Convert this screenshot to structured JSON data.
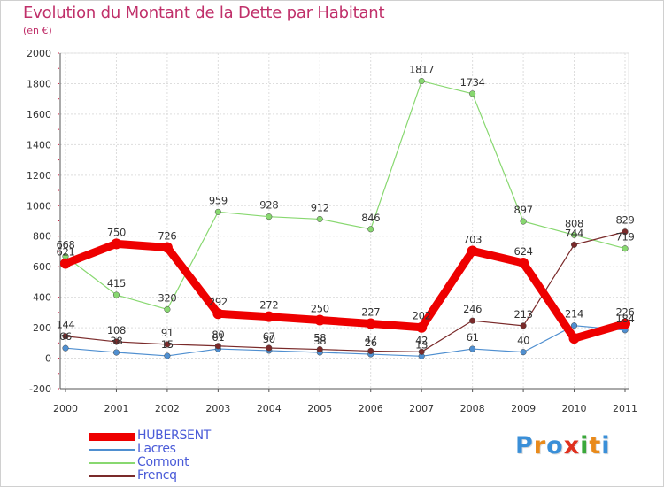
{
  "header": {
    "title": "Evolution du Montant de la Dette par Habitant",
    "subtitle": "(en €)"
  },
  "brand": {
    "letters": [
      "P",
      "r",
      "o",
      "x",
      "i",
      "t",
      "i"
    ],
    "colors": [
      "#3a8fd8",
      "#e98a1a",
      "#3a8fd8",
      "#e0301e",
      "#3aa83a",
      "#e98a1a",
      "#3a8fd8"
    ]
  },
  "chart_data": {
    "type": "line",
    "title": "Evolution du Montant de la Dette par Habitant",
    "ylabel": "(en €)",
    "xlabel": "",
    "categories": [
      "2000",
      "2001",
      "2002",
      "2003",
      "2004",
      "2005",
      "2006",
      "2007",
      "2008",
      "2009",
      "2010",
      "2011"
    ],
    "ylim": [
      -200,
      2000
    ],
    "yticks": [
      -200,
      0,
      200,
      400,
      600,
      800,
      1000,
      1200,
      1400,
      1600,
      1800,
      2000
    ],
    "grid": "horizontal",
    "legend_position": "bottom-left",
    "series": [
      {
        "name": "HUBERSENT",
        "color": "#ee0000",
        "values": [
          621,
          750,
          726,
          292,
          272,
          250,
          227,
          202,
          703,
          624,
          130,
          226
        ],
        "labels": [
          "621",
          "750",
          "726",
          "292",
          "272",
          "250",
          "227",
          "202",
          "703",
          "624",
          "",
          "226"
        ]
      },
      {
        "name": "Lacres",
        "color": "#4f8fd0",
        "values": [
          66,
          38,
          15,
          61,
          50,
          38,
          26,
          13,
          61,
          40,
          214,
          184
        ],
        "labels": [
          "66",
          "38",
          "15",
          "61",
          "50",
          "38",
          "26",
          "13",
          "61",
          "40",
          "214",
          "184"
        ]
      },
      {
        "name": "Cormont",
        "color": "#88d870",
        "values": [
          668,
          415,
          320,
          959,
          928,
          912,
          846,
          1817,
          1734,
          897,
          808,
          719
        ],
        "labels": [
          "668",
          "415",
          "320",
          "959",
          "928",
          "912",
          "846",
          "1817",
          "1734",
          "897",
          "808",
          "719"
        ]
      },
      {
        "name": "Frencq",
        "color": "#7a2a2a",
        "values": [
          144,
          108,
          91,
          80,
          67,
          58,
          47,
          42,
          246,
          213,
          744,
          829
        ],
        "labels": [
          "144",
          "108",
          "91",
          "80",
          "67",
          "58",
          "47",
          "42",
          "246",
          "213",
          "744",
          "829"
        ]
      }
    ]
  }
}
